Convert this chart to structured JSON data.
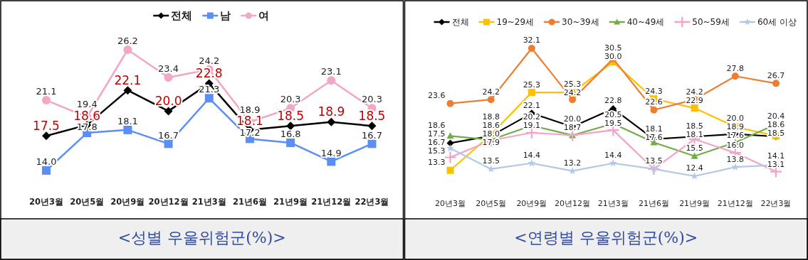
{
  "chart_data": [
    {
      "type": "line",
      "title": "<성별 우울위험군(%)>",
      "categories": [
        "20년3월",
        "20년5월",
        "20년9월",
        "20년12월",
        "21년3월",
        "21년6월",
        "21년9월",
        "21년12월",
        "22년3월"
      ],
      "legend": "top",
      "data_labels": true,
      "series": [
        {
          "name": "전체",
          "color": "#000000",
          "marker": "diamond",
          "values": [
            17.5,
            18.6,
            22.1,
            20.0,
            22.8,
            18.1,
            18.5,
            18.9,
            18.5
          ],
          "value_labels": [
            "17.5",
            "18.6",
            "22.1",
            "20.0",
            "22.8",
            "18.1",
            "18.5",
            "18.9",
            "18.5"
          ]
        },
        {
          "name": "남",
          "color": "#5b8ff5",
          "marker": "square",
          "values": [
            14.0,
            17.8,
            18.1,
            16.7,
            21.3,
            17.2,
            16.8,
            14.9,
            16.7
          ],
          "value_labels": [
            "14.0",
            "17.8",
            "18.1",
            "16.7",
            "21.3",
            "17.2",
            "16.8",
            "14.9",
            "16.7"
          ]
        },
        {
          "name": "여",
          "color": "#f2a7c6",
          "marker": "circle",
          "values": [
            21.1,
            19.4,
            26.2,
            23.4,
            24.2,
            18.9,
            20.3,
            23.1,
            20.3
          ]
        }
      ]
    },
    {
      "type": "line",
      "title": "<연령별 우울위험군(%)>",
      "categories": [
        "20년3월",
        "20년5월",
        "20년9월",
        "20년12월",
        "21년3월",
        "21년6월",
        "21년9월",
        "21년12월",
        "22년3월"
      ],
      "legend": "top",
      "data_labels": true,
      "series": [
        {
          "name": "전체",
          "color": "#000000",
          "marker": "diamond",
          "values": [
            17.5,
            18.6,
            22.1,
            20.0,
            22.8,
            18.1,
            18.5,
            18.9,
            18.5
          ],
          "value_labels": [
            "17.5",
            "18.6",
            "22.1",
            "20.0",
            "22.8",
            "18.1",
            "18.5",
            "18.9",
            "18.5"
          ]
        },
        {
          "name": "19~29세",
          "color": "#ffc000",
          "marker": "square",
          "values": [
            13.3,
            18.8,
            25.3,
            25.3,
            30.0,
            24.3,
            22.9,
            20.0,
            18.6
          ],
          "value_labels": [
            "13.3",
            "18.8",
            "25.3",
            "25.3",
            "30.0",
            "24.3",
            "22.9",
            "20.0",
            "18.6"
          ]
        },
        {
          "name": "30~39세",
          "color": "#ed7d31",
          "marker": "circle",
          "values": [
            23.6,
            24.2,
            32.1,
            24.2,
            30.5,
            22.6,
            24.2,
            27.8,
            26.7
          ]
        },
        {
          "name": "40~49세",
          "color": "#70ad47",
          "marker": "triangle",
          "values": [
            18.6,
            18.0,
            20.2,
            18.7,
            20.5,
            17.6,
            15.5,
            17.6,
            20.4
          ],
          "value_labels": [
            "18.6",
            "18.0",
            "20.2",
            "18.7",
            "20.5",
            "17.6",
            "15.5",
            "17.6",
            "20.4"
          ]
        },
        {
          "name": "50~59세",
          "color": "#f4a3c6",
          "marker": "cross",
          "values": [
            15.3,
            17.9,
            19.1,
            18.7,
            19.5,
            13.5,
            18.1,
            16.0,
            13.1
          ],
          "value_labels": [
            "15.3",
            "17.9",
            "19.1",
            null,
            "19.5",
            null,
            "18.1",
            "16.0",
            "13.1"
          ]
        },
        {
          "name": "60세 이상",
          "color": "#b4c7e7",
          "marker": "star",
          "values": [
            16.7,
            13.5,
            14.4,
            13.2,
            14.4,
            13.5,
            12.4,
            13.8,
            14.1
          ]
        }
      ]
    }
  ]
}
